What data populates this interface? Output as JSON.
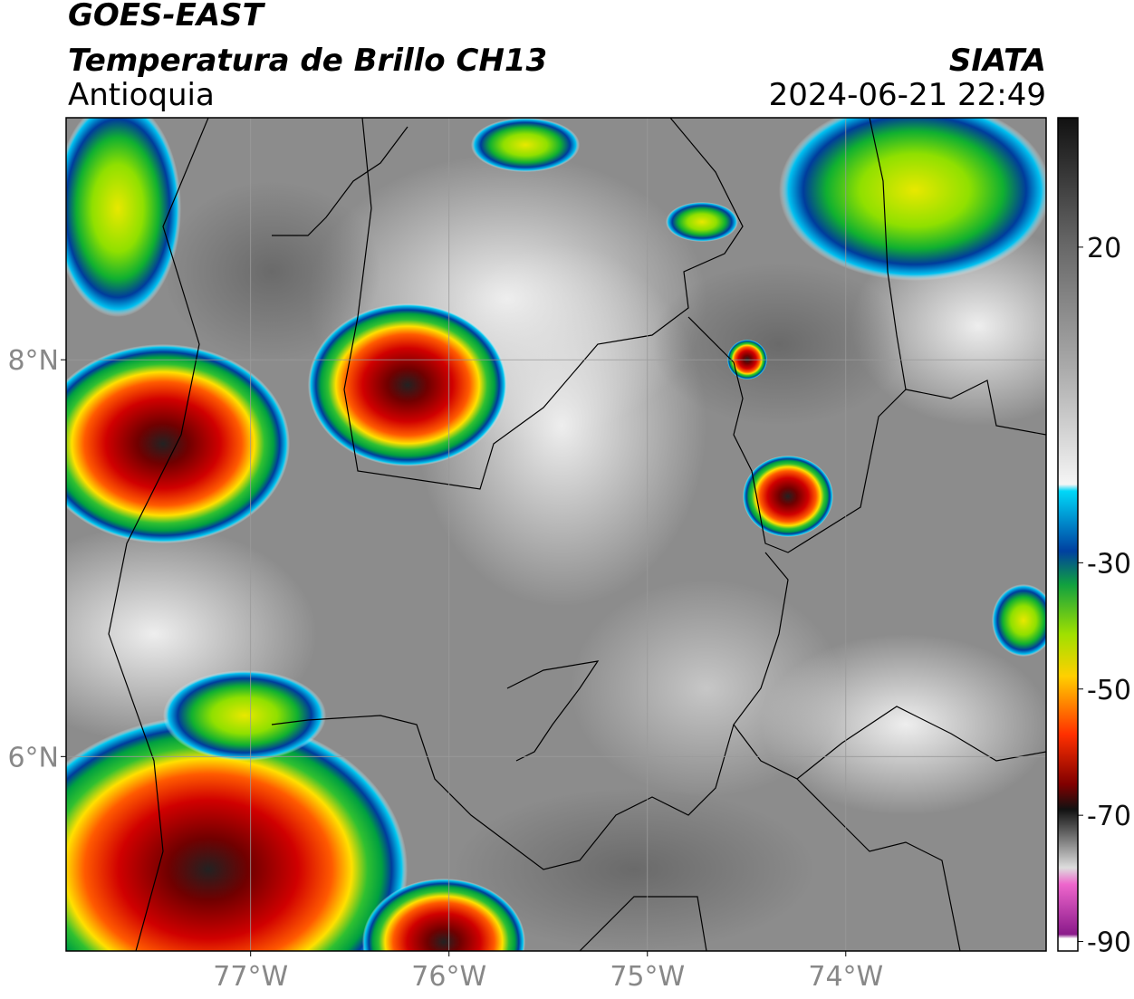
{
  "header": {
    "line1": "GOES-EAST",
    "line2": "Temperatura de Brillo CH13",
    "agency": "SIATA",
    "region": "Antioquia",
    "datetime": "2024-06-21 22:49"
  },
  "map": {
    "lon_range": [
      -77.93,
      -72.99
    ],
    "lat_range": [
      5.02,
      9.22
    ],
    "lon_ticks": [
      {
        "value": -77,
        "label": "77°W"
      },
      {
        "value": -76,
        "label": "76°W"
      },
      {
        "value": -75,
        "label": "75°W"
      },
      {
        "value": -74,
        "label": "74°W"
      }
    ],
    "lat_ticks": [
      {
        "value": 8,
        "label": "8°N"
      },
      {
        "value": 6,
        "label": "6°N"
      }
    ],
    "grid": true
  },
  "colorbar": {
    "lim": [
      -91.5,
      40.5
    ],
    "ticks": [
      20,
      -30,
      -50,
      -70,
      -90
    ]
  }
}
